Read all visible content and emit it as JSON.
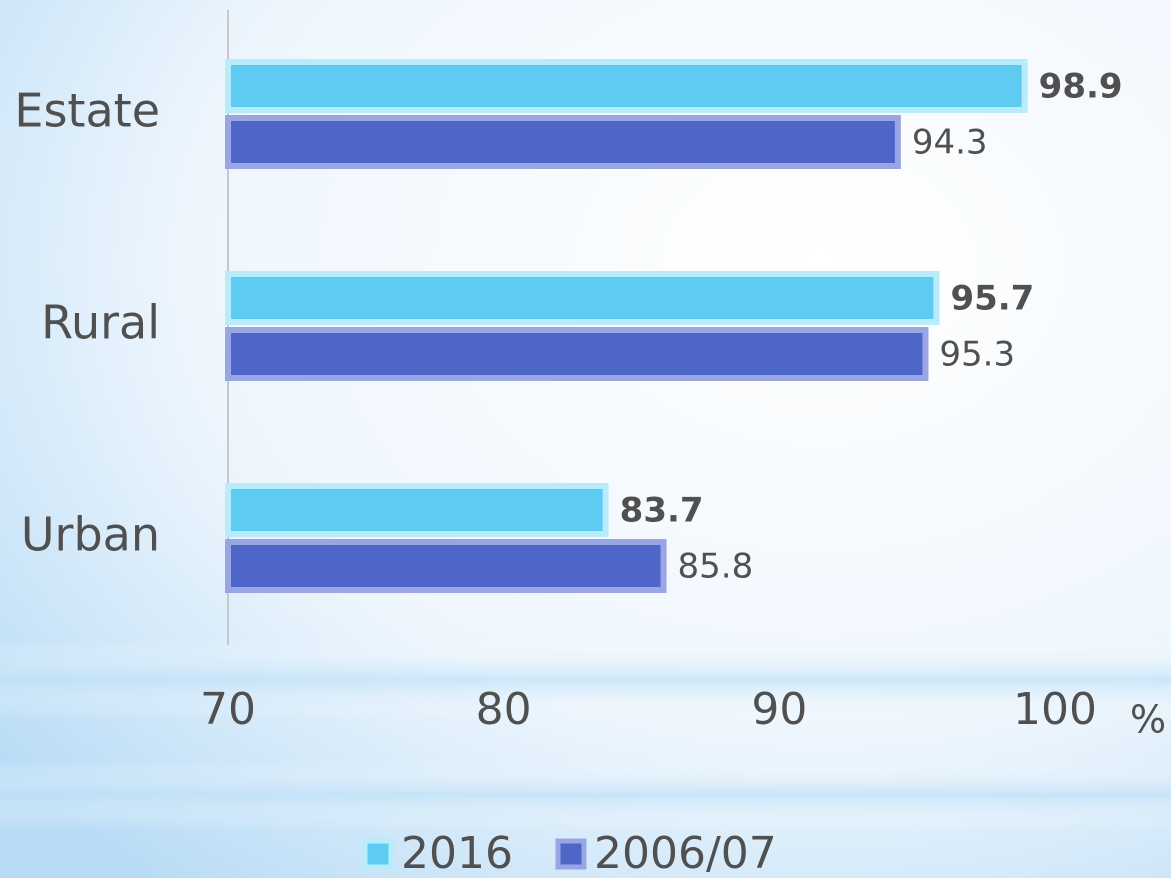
{
  "chart_data": {
    "type": "hbar",
    "categories": [
      "Estate",
      "Rural",
      "Urban"
    ],
    "series": [
      {
        "name": "2016",
        "color": "#5ecbf2",
        "border": "#b8ecfb",
        "values": [
          98.9,
          95.7,
          83.7
        ]
      },
      {
        "name": "2006/07",
        "color": "#4f66c9",
        "border": "#9aa6e3",
        "values": [
          94.3,
          95.3,
          85.8
        ]
      }
    ],
    "xlabel": "%",
    "xlim": [
      70,
      100
    ],
    "xticks": [
      70,
      80,
      90,
      100
    ],
    "grid": false,
    "legend": "bottom"
  }
}
